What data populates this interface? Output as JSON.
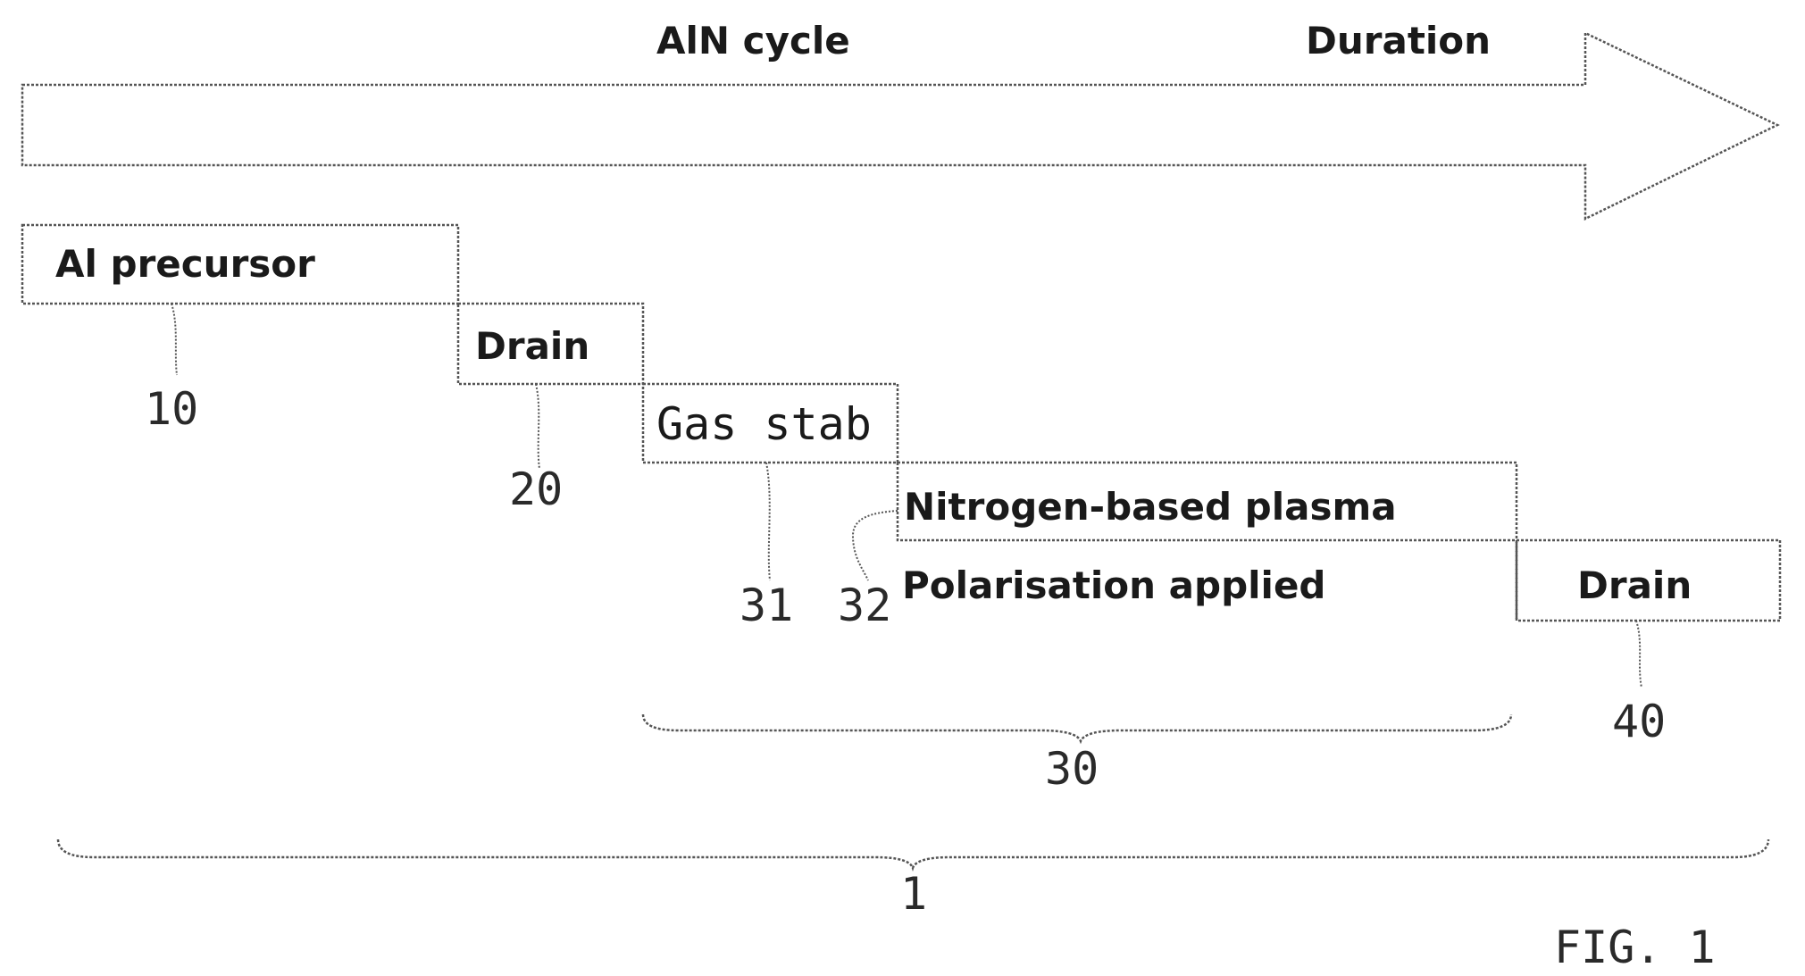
{
  "header": {
    "cycle_title": "AlN cycle",
    "axis_label": "Duration"
  },
  "steps": {
    "al_precursor": "Al precursor",
    "drain_first": "Drain",
    "gas_stab": "Gas stab",
    "nitrogen_plasma": "Nitrogen-based plasma",
    "polarisation": "Polarisation applied",
    "drain_last": "Drain"
  },
  "refs": {
    "al_precursor": "10",
    "drain_first": "20",
    "gas_stab": "31",
    "polarisation": "32",
    "plasma_phase": "30",
    "drain_last": "40",
    "whole_cycle": "1"
  },
  "figure_label": "FIG. 1"
}
